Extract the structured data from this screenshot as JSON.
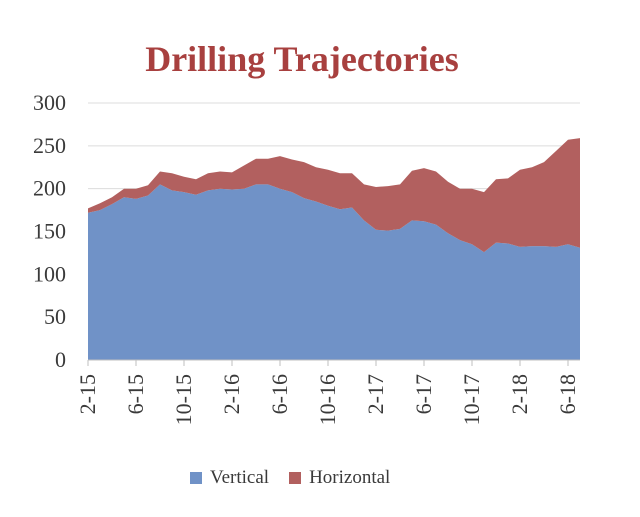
{
  "chart_data": {
    "type": "area",
    "stacked": true,
    "title": "Drilling Trajectories",
    "xlabel": "",
    "ylabel": "",
    "ylim": [
      0,
      300
    ],
    "y_ticks": [
      "0",
      "50",
      "100",
      "150",
      "200",
      "250",
      "300"
    ],
    "x_tick_labels": [
      "2-15",
      "6-15",
      "10-15",
      "2-16",
      "6-16",
      "10-16",
      "2-17",
      "6-17",
      "10-17",
      "2-18",
      "6-18"
    ],
    "grid": true,
    "legend_position": "bottom",
    "x": [
      "2-15",
      "3-15",
      "4-15",
      "5-15",
      "6-15",
      "7-15",
      "8-15",
      "9-15",
      "10-15",
      "11-15",
      "12-15",
      "1-16",
      "2-16",
      "3-16",
      "4-16",
      "5-16",
      "6-16",
      "7-16",
      "8-16",
      "9-16",
      "10-16",
      "11-16",
      "12-16",
      "1-17",
      "2-17",
      "3-17",
      "4-17",
      "5-17",
      "6-17",
      "7-17",
      "8-17",
      "9-17",
      "10-17",
      "11-17",
      "12-17",
      "1-18",
      "2-18",
      "3-18",
      "4-18",
      "5-18",
      "6-18",
      "7-18"
    ],
    "series": [
      {
        "name": "Vertical",
        "color": "#7092c7",
        "values": [
          172,
          175,
          182,
          190,
          188,
          192,
          205,
          198,
          196,
          193,
          198,
          200,
          199,
          200,
          205,
          205,
          200,
          196,
          189,
          185,
          180,
          176,
          178,
          163,
          152,
          151,
          153,
          163,
          162,
          158,
          148,
          140,
          135,
          126,
          137,
          136,
          132,
          133,
          133,
          132,
          135,
          131
        ]
      },
      {
        "name": "Horizontal",
        "color": "#b2605f",
        "values": [
          5,
          8,
          8,
          10,
          12,
          12,
          15,
          20,
          18,
          18,
          20,
          20,
          20,
          27,
          30,
          30,
          38,
          38,
          42,
          40,
          42,
          42,
          40,
          42,
          50,
          52,
          52,
          58,
          62,
          62,
          60,
          60,
          65,
          70,
          74,
          76,
          90,
          92,
          98,
          112,
          122,
          128
        ]
      }
    ]
  }
}
